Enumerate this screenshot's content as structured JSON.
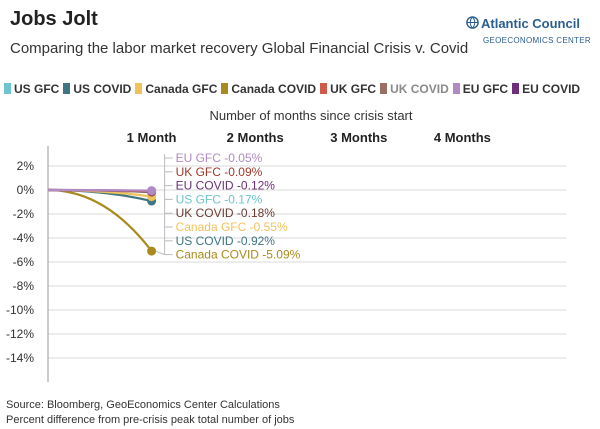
{
  "header": {
    "title": "Jobs Jolt",
    "subtitle": "Comparing the labor market recovery Global Financial Crisis v. Covid"
  },
  "logo": {
    "name": "Atlantic Council",
    "subname": "GEOECONOMICS CENTER",
    "color": "#2a5f8f"
  },
  "footer": {
    "source": "Source: Bloomberg, GeoEconomics Center Calculations",
    "note": "Percent difference from pre-crisis peak total number of jobs"
  },
  "chart_data": {
    "type": "line",
    "xlabel": "Number of months since crisis start",
    "ylabel": "",
    "x_ticks": [
      "1 Month",
      "2 Months",
      "3 Months",
      "4 Months"
    ],
    "x_tick_values": [
      1,
      2,
      3,
      4
    ],
    "xlim": [
      0,
      5
    ],
    "ylim": [
      -16,
      3
    ],
    "y_ticks": [
      2,
      0,
      -2,
      -4,
      -6,
      -8,
      -10,
      -12,
      -14
    ],
    "y_tick_labels": [
      "2%",
      "0%",
      "-2%",
      "-4%",
      "-6%",
      "-8%",
      "-10%",
      "-12%",
      "-14%"
    ],
    "grid": true,
    "legend_position": "top",
    "series": [
      {
        "name": "US GFC",
        "color": "#6cc5cf",
        "x": [
          0,
          1
        ],
        "values": [
          0,
          -0.17
        ],
        "label": "US GFC -0.17%"
      },
      {
        "name": "US COVID",
        "color": "#3f7683",
        "x": [
          0,
          1
        ],
        "values": [
          0,
          -0.92
        ],
        "label": "US COVID -0.92%"
      },
      {
        "name": "Canada GFC",
        "color": "#f2c25a",
        "x": [
          0,
          1
        ],
        "values": [
          0,
          -0.55
        ],
        "label": "Canada GFC -0.55%"
      },
      {
        "name": "Canada COVID",
        "color": "#a98a1c",
        "x": [
          0,
          1
        ],
        "values": [
          0,
          -5.09
        ],
        "label": "Canada COVID -5.09%"
      },
      {
        "name": "UK GFC",
        "color": "#cf5a48",
        "x": [
          0,
          1
        ],
        "values": [
          0,
          -0.09
        ],
        "label": "UK GFC -0.09%"
      },
      {
        "name": "UK COVID",
        "color": "#9a6f65",
        "x": [
          0,
          1
        ],
        "values": [
          0,
          -0.18
        ],
        "label": "UK COVID -0.18%"
      },
      {
        "name": "EU GFC",
        "color": "#b08ac4",
        "x": [
          0,
          1
        ],
        "values": [
          0,
          -0.05
        ],
        "label": "EU GFC -0.05%"
      },
      {
        "name": "EU COVID",
        "color": "#6d2f79",
        "x": [
          0,
          1
        ],
        "values": [
          0,
          -0.12
        ],
        "label": "EU COVID -0.12%"
      }
    ],
    "annotation_order": [
      "EU GFC",
      "UK GFC",
      "EU COVID",
      "US GFC",
      "UK COVID",
      "Canada GFC",
      "US COVID",
      "Canada COVID"
    ],
    "annotation_label_colors": {
      "EU GFC": "#b08ac4",
      "UK GFC": "#9a3a2a",
      "EU COVID": "#6d2f79",
      "US GFC": "#6cc5cf",
      "UK COVID": "#6a3a32",
      "Canada GFC": "#f2c25a",
      "US COVID": "#3f7683",
      "Canada COVID": "#a98a1c"
    }
  }
}
